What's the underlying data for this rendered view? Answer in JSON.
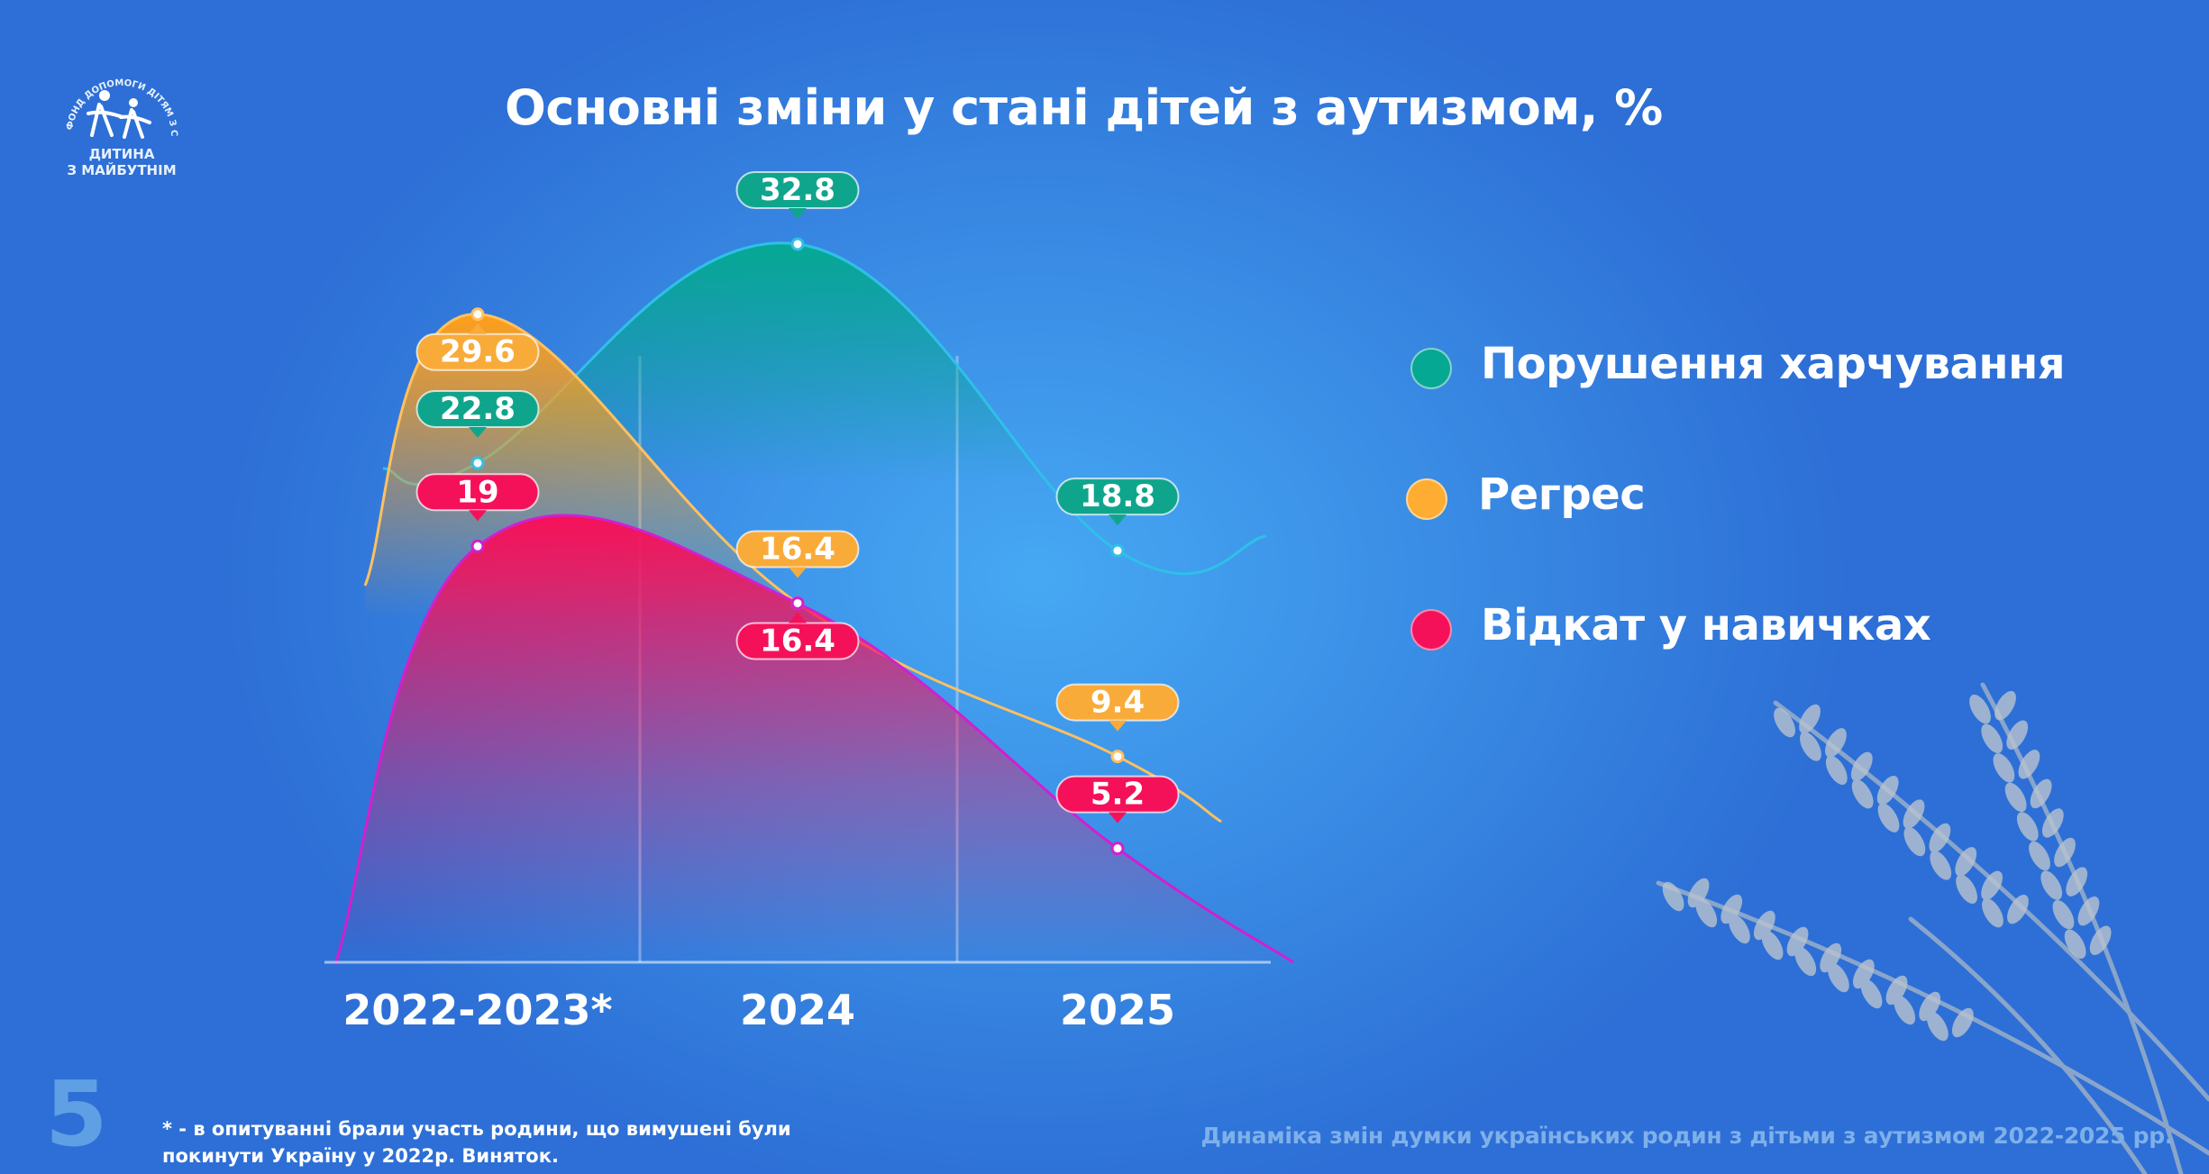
{
  "logo": {
    "arc_text": "ФОНД ДОПОМОГИ ДІТЯМ З СИНДРОМОМ АУТИЗМУ",
    "line1": "ДИТИНА",
    "line2": "З МАЙБУТНІМ"
  },
  "page_number": "5",
  "footnote": "* - в опитуванні брали участь родини, що вимушені були покинути Україну у 2022р. Виняток.",
  "footer_caption": "Динаміка змін думки українських родин з дітьми з аутизмом 2022-2025 рр.",
  "colors": {
    "feeding": "#05a892",
    "regress": "#ff9f1a",
    "skills": "#f5115a",
    "feeding_label": "#0fa58c",
    "regress_label": "#f9ab3a",
    "skills_label": "#f5115a"
  },
  "chart_data": {
    "type": "area",
    "title": "Основні зміни у стані дітей з аутизмом, %",
    "categories": [
      "2022-2023*",
      "2024",
      "2025"
    ],
    "series": [
      {
        "name": "Порушення харчування",
        "values": [
          22.8,
          32.8,
          18.8
        ],
        "color": "#05a892"
      },
      {
        "name": "Регрес",
        "values": [
          29.6,
          16.4,
          9.4
        ],
        "color": "#ff9f1a"
      },
      {
        "name": "Відкат у навичках",
        "values": [
          19,
          16.4,
          5.2
        ],
        "color": "#f5115a"
      }
    ],
    "value_labels": [
      [
        "22.8",
        "32.8",
        "18.8"
      ],
      [
        "29.6",
        "16.4",
        "9.4"
      ],
      [
        "19",
        "16.4",
        "5.2"
      ]
    ],
    "ylim": [
      0,
      40
    ],
    "grid": "vertical separators between categories",
    "legend": "right"
  }
}
